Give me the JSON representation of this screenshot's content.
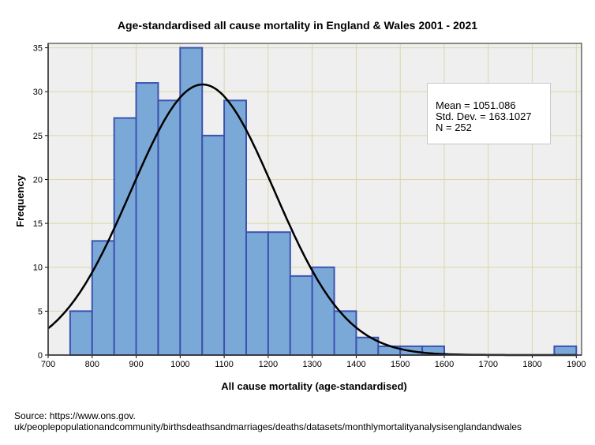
{
  "chart_data": {
    "type": "bar",
    "subtype": "histogram",
    "title": "Age-standardised all cause mortality in England & Wales 2001 - 2021",
    "xlabel": "All cause mortality (age-standardised)",
    "ylabel": "Frequency",
    "xlim": [
      700,
      1912
    ],
    "ylim": [
      0,
      35.5
    ],
    "xticks": [
      "700",
      "800",
      "900",
      "1000",
      "1100",
      "1200",
      "1300",
      "1400",
      "1500",
      "1600",
      "1700",
      "1800",
      "1900"
    ],
    "yticks": [
      "0",
      "5",
      "10",
      "15",
      "20",
      "25",
      "30",
      "35"
    ],
    "grid": true,
    "bin_width": 50,
    "bins": [
      {
        "start": 750,
        "count": 5
      },
      {
        "start": 800,
        "count": 13
      },
      {
        "start": 850,
        "count": 27
      },
      {
        "start": 900,
        "count": 31
      },
      {
        "start": 950,
        "count": 29
      },
      {
        "start": 1000,
        "count": 35
      },
      {
        "start": 1050,
        "count": 25
      },
      {
        "start": 1100,
        "count": 29
      },
      {
        "start": 1150,
        "count": 14
      },
      {
        "start": 1200,
        "count": 14
      },
      {
        "start": 1250,
        "count": 9
      },
      {
        "start": 1300,
        "count": 10
      },
      {
        "start": 1350,
        "count": 5
      },
      {
        "start": 1400,
        "count": 2
      },
      {
        "start": 1450,
        "count": 1
      },
      {
        "start": 1500,
        "count": 1
      },
      {
        "start": 1550,
        "count": 1
      },
      {
        "start": 1850,
        "count": 1
      }
    ],
    "normal_curve": {
      "mean": 1051.086,
      "sd": 163.1027,
      "n": 252
    },
    "stats": {
      "mean": "Mean = 1051.086",
      "sd": "Std. Dev. = 163.1027",
      "n": "N = 252"
    },
    "colors": {
      "bar_fill": "#7ba9d7",
      "bar_stroke": "#3b52b0",
      "plot_bg": "#efefef",
      "grid": "#ddd7a8",
      "curve": "#000000"
    }
  },
  "source_line1": "Source: https://www.ons.gov.",
  "source_line2": "uk/peoplepopulationandcommunity/birthsdeathsandmarriages/deaths/datasets/monthlymortalityanalysisenglandandwales"
}
